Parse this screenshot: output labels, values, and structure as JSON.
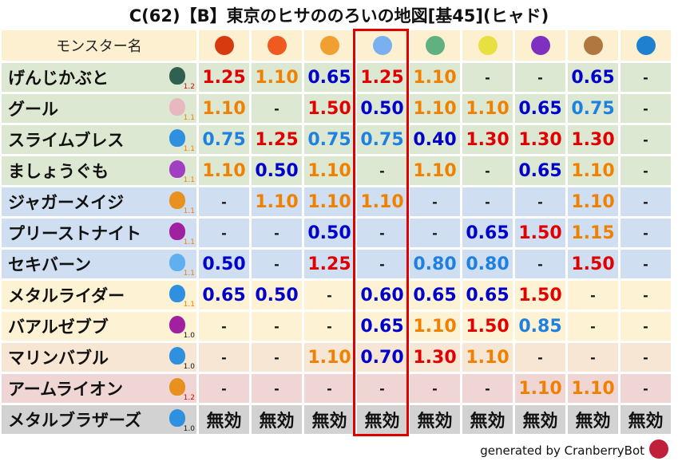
{
  "title": "C(62)【B】東京のヒサののろいの地図[基45](ヒャド)",
  "header": {
    "name_label": "モンスター名",
    "elements": [
      {
        "icon": "fire-ball-icon",
        "color": "#d83a10"
      },
      {
        "icon": "flame-icon",
        "color": "#f05a20"
      },
      {
        "icon": "explosion-icon",
        "color": "#f0a030"
      },
      {
        "icon": "ice-icon",
        "color": "#7ab0f0"
      },
      {
        "icon": "wind-icon",
        "color": "#60b080"
      },
      {
        "icon": "lightning-icon",
        "color": "#e8e040"
      },
      {
        "icon": "dark-icon",
        "color": "#8030c0"
      },
      {
        "icon": "earth-icon",
        "color": "#b07840"
      },
      {
        "icon": "water-icon",
        "color": "#2080d0"
      }
    ]
  },
  "colors": {
    "red": "#e00000",
    "orange": "#f08000",
    "blue": "#0000cc",
    "lightblue": "#1e80e0",
    "black": "#111111",
    "highlight": "#e00000"
  },
  "rows": [
    {
      "name": "げんじかぶと",
      "icon": "bug-icon",
      "icolor": "#306050",
      "level": "1.2",
      "lcolor": "red",
      "bg": "#dde8d3",
      "values": [
        [
          "1.25",
          "red"
        ],
        [
          "1.10",
          "orange"
        ],
        [
          "0.65",
          "blue"
        ],
        [
          "1.25",
          "red"
        ],
        [
          "1.10",
          "orange"
        ],
        [
          "-",
          "black"
        ],
        [
          "-",
          "black"
        ],
        [
          "0.65",
          "blue"
        ],
        [
          "-",
          "black"
        ]
      ]
    },
    {
      "name": "グール",
      "icon": "skull-icon",
      "icolor": "#e8b8c0",
      "level": "1.1",
      "lcolor": "orange",
      "bg": "#dde8d3",
      "values": [
        [
          "1.10",
          "orange"
        ],
        [
          "-",
          "black"
        ],
        [
          "1.50",
          "red"
        ],
        [
          "0.50",
          "blue"
        ],
        [
          "1.10",
          "orange"
        ],
        [
          "1.10",
          "orange"
        ],
        [
          "0.65",
          "blue"
        ],
        [
          "0.75",
          "lightblue"
        ],
        [
          "-",
          "black"
        ]
      ]
    },
    {
      "name": "スライムブレス",
      "icon": "slime-icon",
      "icolor": "#3090e0",
      "level": "1.1",
      "lcolor": "orange",
      "bg": "#dde8d3",
      "values": [
        [
          "0.75",
          "lightblue"
        ],
        [
          "1.25",
          "red"
        ],
        [
          "0.75",
          "lightblue"
        ],
        [
          "0.75",
          "lightblue"
        ],
        [
          "0.40",
          "blue"
        ],
        [
          "1.30",
          "red"
        ],
        [
          "1.30",
          "red"
        ],
        [
          "1.30",
          "red"
        ],
        [
          "-",
          "black"
        ]
      ]
    },
    {
      "name": "ましょうぐも",
      "icon": "cloud-icon",
      "icolor": "#a040c0",
      "level": "1.1",
      "lcolor": "orange",
      "bg": "#dde8d3",
      "values": [
        [
          "1.10",
          "orange"
        ],
        [
          "0.50",
          "blue"
        ],
        [
          "1.10",
          "orange"
        ],
        [
          "-",
          "black"
        ],
        [
          "1.10",
          "orange"
        ],
        [
          "-",
          "black"
        ],
        [
          "0.65",
          "blue"
        ],
        [
          "1.10",
          "orange"
        ],
        [
          "-",
          "black"
        ]
      ]
    },
    {
      "name": "ジャガーメイジ",
      "icon": "paw-icon",
      "icolor": "#e89020",
      "level": "1.1",
      "lcolor": "orange",
      "bg": "#cfdef0",
      "values": [
        [
          "-",
          "black"
        ],
        [
          "1.10",
          "orange"
        ],
        [
          "1.10",
          "orange"
        ],
        [
          "1.10",
          "orange"
        ],
        [
          "-",
          "black"
        ],
        [
          "-",
          "black"
        ],
        [
          "-",
          "black"
        ],
        [
          "1.10",
          "orange"
        ],
        [
          "-",
          "black"
        ]
      ]
    },
    {
      "name": "プリーストナイト",
      "icon": "trident-icon",
      "icolor": "#a020a0",
      "level": "1.1",
      "lcolor": "orange",
      "bg": "#cfdef0",
      "values": [
        [
          "-",
          "black"
        ],
        [
          "-",
          "black"
        ],
        [
          "0.50",
          "blue"
        ],
        [
          "-",
          "black"
        ],
        [
          "-",
          "black"
        ],
        [
          "0.65",
          "blue"
        ],
        [
          "1.50",
          "red"
        ],
        [
          "1.15",
          "orange"
        ],
        [
          "-",
          "black"
        ]
      ]
    },
    {
      "name": "セキバーン",
      "icon": "drop-icon",
      "icolor": "#60b0f0",
      "level": "1.1",
      "lcolor": "orange",
      "bg": "#cfdef0",
      "values": [
        [
          "0.50",
          "blue"
        ],
        [
          "-",
          "black"
        ],
        [
          "1.25",
          "red"
        ],
        [
          "-",
          "black"
        ],
        [
          "0.80",
          "lightblue"
        ],
        [
          "0.80",
          "lightblue"
        ],
        [
          "-",
          "black"
        ],
        [
          "1.50",
          "red"
        ],
        [
          "-",
          "black"
        ]
      ]
    },
    {
      "name": "メタルライダー",
      "icon": "slime-icon",
      "icolor": "#3090e0",
      "level": "1.1",
      "lcolor": "orange",
      "bg": "#fdf2d3",
      "values": [
        [
          "0.65",
          "blue"
        ],
        [
          "0.50",
          "blue"
        ],
        [
          "-",
          "black"
        ],
        [
          "0.60",
          "blue"
        ],
        [
          "0.65",
          "blue"
        ],
        [
          "0.65",
          "blue"
        ],
        [
          "1.50",
          "red"
        ],
        [
          "-",
          "black"
        ],
        [
          "-",
          "black"
        ]
      ]
    },
    {
      "name": "バアルゼブブ",
      "icon": "trident-icon",
      "icolor": "#a020a0",
      "level": "1.0",
      "lcolor": "black",
      "bg": "#fdf2d3",
      "values": [
        [
          "-",
          "black"
        ],
        [
          "-",
          "black"
        ],
        [
          "-",
          "black"
        ],
        [
          "0.65",
          "blue"
        ],
        [
          "1.10",
          "orange"
        ],
        [
          "1.50",
          "red"
        ],
        [
          "0.85",
          "lightblue"
        ],
        [
          "-",
          "black"
        ],
        [
          "-",
          "black"
        ]
      ]
    },
    {
      "name": "マリンバブル",
      "icon": "slime-icon",
      "icolor": "#3090e0",
      "level": "1.0",
      "lcolor": "black",
      "bg": "#f8e6d4",
      "values": [
        [
          "-",
          "black"
        ],
        [
          "-",
          "black"
        ],
        [
          "1.10",
          "orange"
        ],
        [
          "0.70",
          "blue"
        ],
        [
          "1.30",
          "red"
        ],
        [
          "1.10",
          "orange"
        ],
        [
          "-",
          "black"
        ],
        [
          "-",
          "black"
        ],
        [
          "-",
          "black"
        ]
      ]
    },
    {
      "name": "アームライオン",
      "icon": "paw-icon",
      "icolor": "#e89020",
      "level": "1.2",
      "lcolor": "red",
      "bg": "#f0d5d5",
      "values": [
        [
          "-",
          "black"
        ],
        [
          "-",
          "black"
        ],
        [
          "-",
          "black"
        ],
        [
          "-",
          "black"
        ],
        [
          "-",
          "black"
        ],
        [
          "-",
          "black"
        ],
        [
          "1.10",
          "orange"
        ],
        [
          "1.10",
          "orange"
        ],
        [
          "-",
          "black"
        ]
      ]
    },
    {
      "name": "メタルブラザーズ",
      "icon": "slime-icon",
      "icolor": "#3090e0",
      "level": "1.0",
      "lcolor": "black",
      "bg": "#d2d2d2",
      "values": [
        [
          "無効",
          "black"
        ],
        [
          "無効",
          "black"
        ],
        [
          "無効",
          "black"
        ],
        [
          "無効",
          "black"
        ],
        [
          "無効",
          "black"
        ],
        [
          "無効",
          "black"
        ],
        [
          "無効",
          "black"
        ],
        [
          "無効",
          "black"
        ],
        [
          "無効",
          "black"
        ]
      ]
    }
  ],
  "footer": {
    "text": "generated by CranberryBot",
    "icon": "cranberry-bot-icon"
  }
}
